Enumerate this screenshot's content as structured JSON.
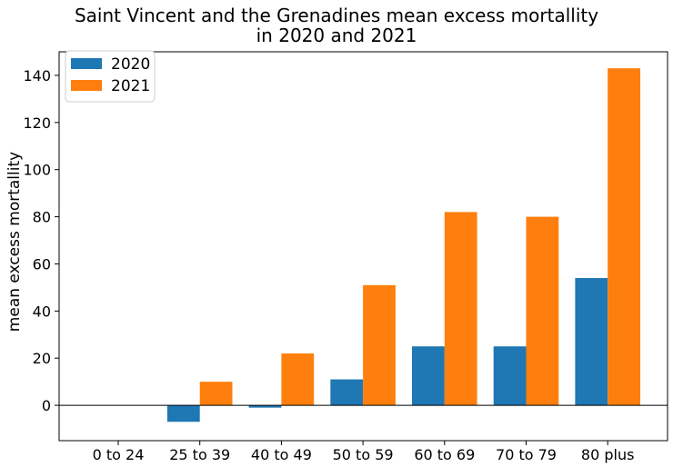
{
  "chart_data": {
    "type": "bar",
    "title_lines": [
      "Saint Vincent and the Grenadines mean excess mortallity",
      "in 2020 and 2021"
    ],
    "xlabel": "",
    "ylabel": "mean excess mortallity",
    "categories": [
      "0 to 24",
      "25 to 39",
      "40 to 49",
      "50 to 59",
      "60 to 69",
      "70 to 79",
      "80 plus"
    ],
    "series": [
      {
        "name": "2020",
        "color": "#1f77b4",
        "values": [
          0,
          -7,
          -1,
          11,
          25,
          25,
          54
        ]
      },
      {
        "name": "2021",
        "color": "#ff7f0e",
        "values": [
          0,
          10,
          22,
          51,
          82,
          80,
          143
        ]
      }
    ],
    "ylim": [
      -15,
      150
    ],
    "yticks": [
      0,
      20,
      40,
      60,
      80,
      100,
      120,
      140
    ],
    "zero_line": true,
    "legend_position": "top-left",
    "grid": false
  }
}
